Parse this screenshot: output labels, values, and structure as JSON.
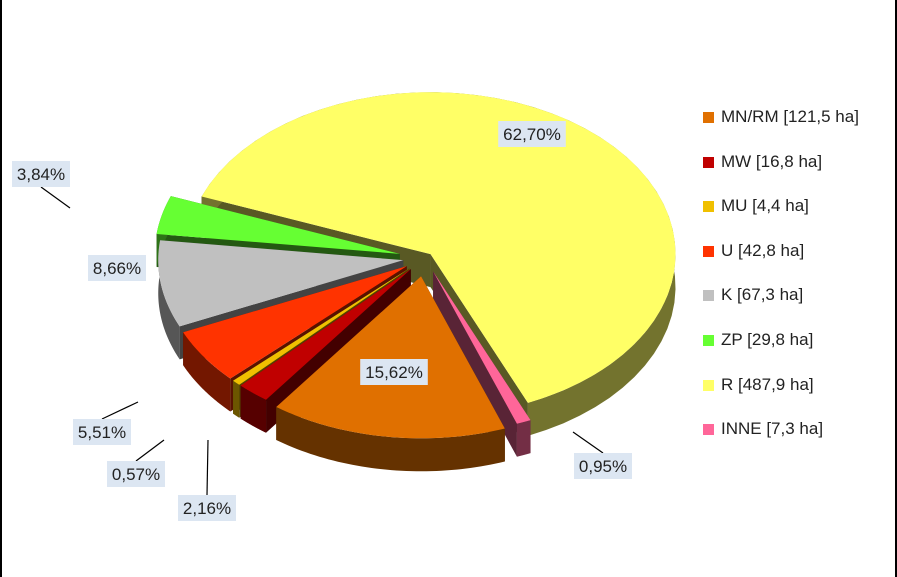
{
  "chart_data": {
    "type": "pie",
    "title": "",
    "slices": [
      {
        "name": "MN/RM [121,5 ha]",
        "label": "15,62%",
        "value": 15.62,
        "color": "#E07000"
      },
      {
        "name": "MW [16,8 ha]",
        "label": "2,16%",
        "value": 2.16,
        "color": "#C00000"
      },
      {
        "name": "MU [4,4 ha]",
        "label": "0,57%",
        "value": 0.57,
        "color": "#F0C000"
      },
      {
        "name": "U [42,8 ha]",
        "label": "5,51%",
        "value": 5.51,
        "color": "#FF3300"
      },
      {
        "name": "K [67,3 ha]",
        "label": "8,66%",
        "value": 8.66,
        "color": "#C0C0C0"
      },
      {
        "name": "ZP [29,8 ha]",
        "label": "3,84%",
        "value": 3.84,
        "color": "#66FF33"
      },
      {
        "name": "R [487,9 ha]",
        "label": "62,70%",
        "value": 62.7,
        "color": "#FFFF66"
      },
      {
        "name": "INNE [7,3 ha]",
        "label": "0,95%",
        "value": 0.95,
        "color": "#FF6699"
      }
    ],
    "legend": "right",
    "style": "3d-exploded"
  }
}
